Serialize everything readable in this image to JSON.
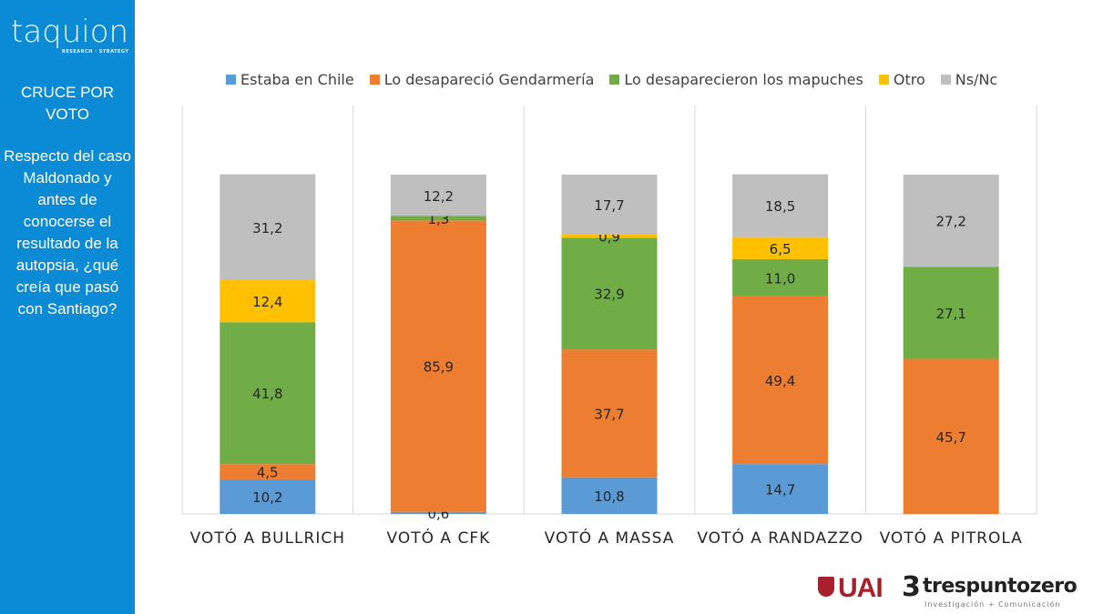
{
  "sidebar": {
    "logo_text": "taquion",
    "logo_subtitle": "RESEARCH · STRATEGY",
    "title": "CRUCE POR VOTO",
    "question": "Respecto del caso Maldonado y antes de conocerse el resultado de la autopsia, ¿qué creía que pasó con Santiago?"
  },
  "footer": {
    "logo_uai": "UAI",
    "logo_tpz_number": "3",
    "logo_tpz_name": "trespuntozero",
    "logo_tpz_tagline": "Investigación + Comunicación"
  },
  "chart_data": {
    "type": "bar",
    "stacked": true,
    "percent": true,
    "title": "",
    "xlabel": "",
    "ylabel": "",
    "ylim": [
      0,
      100
    ],
    "grid": "vertical separators between categories",
    "legend_position": "top",
    "categories": [
      "VOTÓ A BULLRICH",
      "VOTÓ A CFK",
      "VOTÓ A MASSA",
      "VOTÓ A RANDAZZO",
      "VOTÓ A PITROLA"
    ],
    "series": [
      {
        "name": "Estaba en Chile",
        "color": "#5b9bd5",
        "values": [
          10.2,
          0.6,
          10.8,
          14.7,
          0
        ]
      },
      {
        "name": "Lo desapareció Gendarmería",
        "color": "#ed7d31",
        "values": [
          4.5,
          85.9,
          37.7,
          49.4,
          45.7
        ]
      },
      {
        "name": "Lo desaparecieron los mapuches",
        "color": "#70ad47",
        "values": [
          41.8,
          1.3,
          32.9,
          11.0,
          27.1
        ]
      },
      {
        "name": "Otro",
        "color": "#ffc000",
        "values": [
          12.4,
          0,
          0.9,
          6.5,
          0
        ]
      },
      {
        "name": "Ns/Nc",
        "color": "#bfbfbf",
        "values": [
          31.2,
          12.2,
          17.7,
          18.5,
          27.2
        ]
      }
    ],
    "data_labels": [
      [
        "10,2",
        "4,5",
        "41,8",
        "12,4",
        "31,2"
      ],
      [
        "0,6",
        "85,9",
        "1,3",
        "",
        "12,2"
      ],
      [
        "10,8",
        "37,7",
        "32,9",
        "0,9",
        "17,7"
      ],
      [
        "14,7",
        "49,4",
        "11,0",
        "6,5",
        "18,5"
      ],
      [
        "",
        "45,7",
        "27,1",
        "",
        "27,2"
      ]
    ]
  }
}
